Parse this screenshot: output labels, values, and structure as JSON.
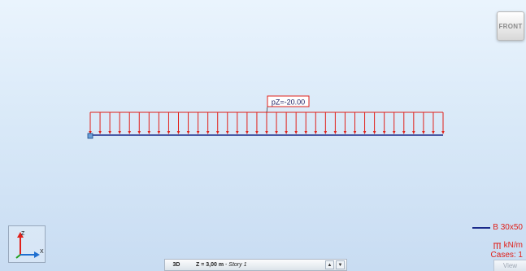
{
  "view_cube": {
    "label": "FRONT"
  },
  "load": {
    "label": "pZ=-20.00",
    "x_start": 0,
    "x_end": 1,
    "arrow_count": 37
  },
  "legend": {
    "section": "B 30x50",
    "units": "kN/m",
    "cases": "Cases: 1",
    "load_icon": "distributed-load-icon",
    "section_color": "#1a2a8a",
    "load_color": "#e0201a"
  },
  "axes": {
    "z_label": "Z",
    "x_label": "X"
  },
  "view_label": "View",
  "story_bar": {
    "mode": "3D",
    "level_prefix": "Z = 3,00 m",
    "level_separator": " - ",
    "story_name": "Story 1",
    "up_icon": "arrow-up-icon",
    "down_icon": "arrow-down-icon"
  }
}
